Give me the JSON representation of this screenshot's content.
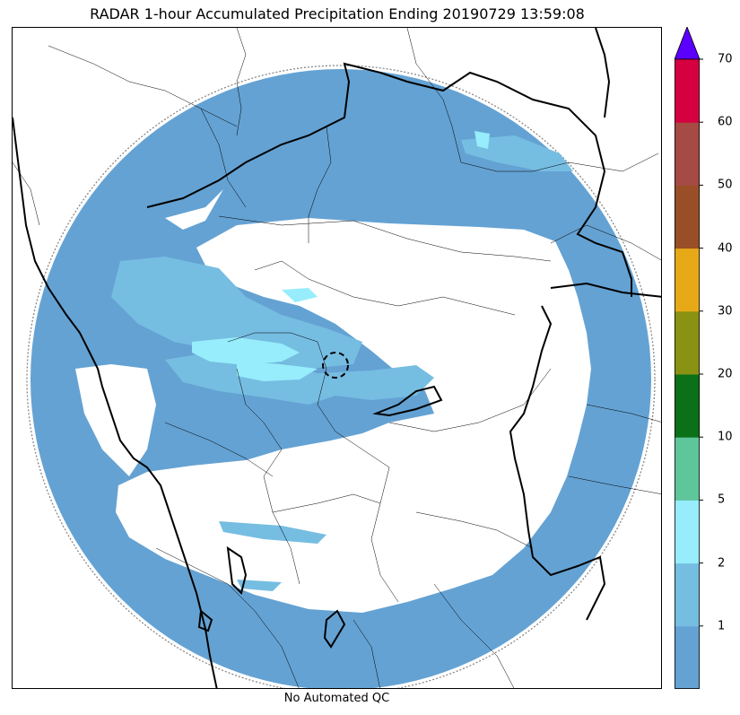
{
  "title": "RADAR 1-hour Accumulated Precipitation Ending 20190729 13:59:08",
  "footer": "No Automated QC",
  "colorbar": {
    "extend": "max",
    "ticks": [
      "1",
      "2",
      "5",
      "10",
      "20",
      "30",
      "40",
      "50",
      "60",
      "70"
    ],
    "colors": [
      "#64a2d3",
      "#76bde2",
      "#97edfb",
      "#5fc69c",
      "#0b7018",
      "#8a9213",
      "#e8a918",
      "#9a4e28",
      "#a54a44",
      "#d5003f"
    ],
    "over_color": "#5b00ff"
  },
  "map": {
    "ring_color": "#64a2d3",
    "light_precip_color": "#76bde2",
    "moderate_precip_color": "#97edfb",
    "boundary_color": "#000000"
  }
}
